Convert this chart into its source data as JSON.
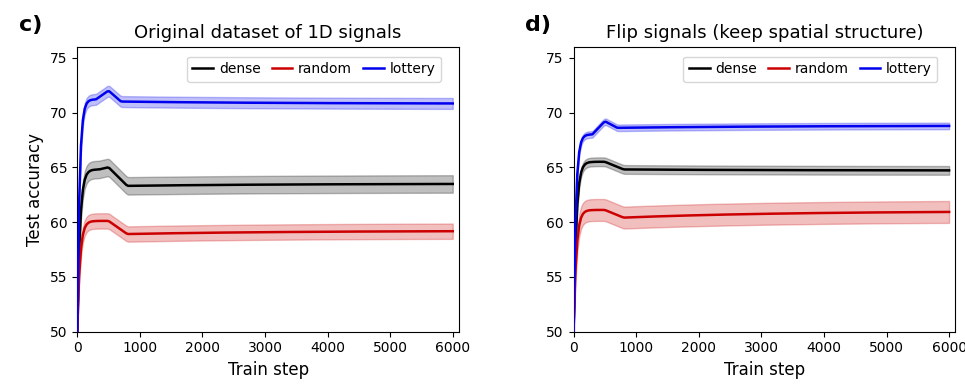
{
  "left": {
    "title": "Original dataset of 1D signals",
    "label": "c)",
    "dense": {
      "start": 50,
      "rise_end": 64.8,
      "peak": 65.0,
      "dip": 63.3,
      "end": 63.5,
      "rise_step": 350,
      "peak_step": 500,
      "dip_step": 800,
      "std_early": 0.8,
      "std_late": 0.8
    },
    "random": {
      "start": 50,
      "rise_end": 60.1,
      "peak": 60.1,
      "dip": 58.9,
      "end": 59.2,
      "rise_step": 350,
      "peak_step": 500,
      "dip_step": 800,
      "std_early": 0.7,
      "std_late": 0.7
    },
    "lottery": {
      "start": 50,
      "rise_end": 71.2,
      "peak": 72.0,
      "dip": 71.0,
      "end": 70.8,
      "rise_step": 300,
      "peak_step": 500,
      "dip_step": 700,
      "std_early": 0.5,
      "std_late": 0.5
    }
  },
  "right": {
    "title": "Flip signals (keep spatial structure)",
    "label": "d)",
    "dense": {
      "start": 50,
      "rise_end": 65.5,
      "peak": 65.5,
      "dip": 64.8,
      "end": 64.7,
      "rise_step": 350,
      "peak_step": 500,
      "dip_step": 800,
      "std_early": 0.4,
      "std_late": 0.4
    },
    "random": {
      "start": 50,
      "rise_end": 61.1,
      "peak": 61.1,
      "dip": 60.4,
      "end": 61.0,
      "rise_step": 350,
      "peak_step": 500,
      "dip_step": 800,
      "std_early": 1.0,
      "std_late": 1.0
    },
    "lottery": {
      "start": 50,
      "rise_end": 68.0,
      "peak": 69.2,
      "dip": 68.6,
      "end": 68.8,
      "rise_step": 300,
      "peak_step": 500,
      "dip_step": 700,
      "std_early": 0.3,
      "std_late": 0.3
    }
  },
  "colors": {
    "dense": "#000000",
    "random": "#cc0000",
    "lottery": "#0000ee"
  },
  "xlim": [
    0,
    6100
  ],
  "ylim": [
    50,
    76
  ],
  "yticks": [
    50,
    55,
    60,
    65,
    70,
    75
  ],
  "xticks": [
    0,
    1000,
    2000,
    3000,
    4000,
    5000,
    6000
  ],
  "xlabel": "Train step",
  "ylabel": "Test accuracy",
  "alpha_fill": 0.25,
  "linewidth": 1.8
}
